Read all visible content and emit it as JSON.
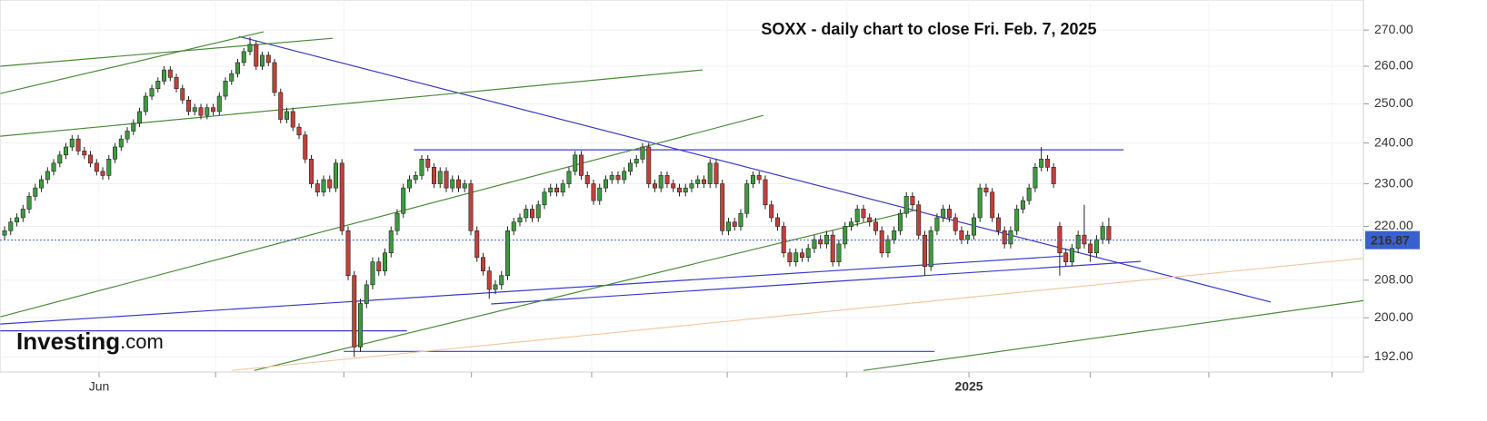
{
  "chart_data": {
    "type": "candlestick",
    "title": "SOXX - daily chart to close Fri. Feb. 7, 2025",
    "logo": {
      "main": "Investing",
      "suffix": ".com"
    },
    "log_scale": true,
    "grid": true,
    "up_color": "#3e9a3e",
    "down_color": "#c2403a",
    "xlim": [
      -0.75,
      221.5
    ],
    "ylim": [
      189,
      278.6
    ],
    "yticks": [
      {
        "value": 192,
        "label": "192.00"
      },
      {
        "value": 200,
        "label": "200.00"
      },
      {
        "value": 208,
        "label": "208.00"
      },
      {
        "value": 220,
        "label": "220.00"
      },
      {
        "value": 230,
        "label": "230.00"
      },
      {
        "value": 240,
        "label": "240.00"
      },
      {
        "value": 250,
        "label": "250.00"
      },
      {
        "value": 260,
        "label": "260.00"
      },
      {
        "value": 270,
        "label": "270.00"
      }
    ],
    "xticks": [
      15.4,
      34.4,
      55.3,
      76.1,
      95.7,
      117.8,
      137.3,
      157.2,
      177.0,
      196.3,
      216.4
    ],
    "xtick_labels": [
      {
        "value": 15.4,
        "label": "Jun"
      },
      {
        "value": 157.2,
        "label": "2025"
      }
    ],
    "last_price": {
      "value": 216.87,
      "label": "216.87",
      "color": "#3a5fd0"
    },
    "open": [
      218,
      219,
      221,
      222,
      224,
      227,
      229,
      231,
      233,
      235,
      237,
      239,
      241,
      238,
      237,
      235,
      233,
      232,
      236,
      239,
      241,
      243,
      245,
      248,
      252,
      254,
      256,
      259,
      257,
      254,
      251,
      248,
      249,
      247,
      249,
      248,
      252,
      256,
      258,
      261,
      264,
      266,
      260,
      263,
      261,
      253,
      246,
      248,
      244,
      242,
      236,
      230,
      228,
      231,
      229,
      235,
      219,
      209,
      194,
      203,
      207,
      212,
      210,
      214,
      219,
      223,
      229,
      231,
      232,
      236,
      234,
      230,
      233,
      229,
      231,
      229,
      230,
      219,
      213,
      210,
      206,
      207,
      209,
      219,
      221,
      222,
      224,
      222,
      225,
      228,
      229,
      228,
      230,
      233,
      237,
      232,
      230,
      226,
      229,
      231,
      232,
      231,
      233,
      235,
      236,
      239,
      230,
      229,
      232,
      230,
      229,
      228,
      229,
      230,
      231,
      230,
      235,
      230,
      219,
      221,
      220,
      223,
      230,
      232,
      231,
      225,
      222,
      220,
      214,
      212,
      214,
      213,
      215,
      217,
      216,
      218,
      212,
      216,
      220,
      221,
      224,
      222,
      221,
      219,
      214,
      217,
      219,
      223,
      227,
      225,
      218,
      211,
      219,
      222,
      224,
      222,
      219,
      217,
      218,
      222,
      229,
      228,
      222,
      219,
      216,
      219,
      224,
      226,
      229,
      234,
      236,
      234,
      220,
      214,
      212,
      215,
      218,
      216,
      214,
      217,
      220
    ],
    "high": [
      220,
      222,
      223,
      225,
      228,
      230,
      232,
      234,
      236,
      238,
      240,
      242,
      242,
      239,
      238,
      236,
      234,
      237,
      240,
      242,
      244,
      246,
      249,
      253,
      255,
      257,
      260,
      260,
      258,
      255,
      252,
      250,
      250,
      250,
      250,
      253,
      257,
      259,
      262,
      265,
      268,
      267,
      264,
      264,
      262,
      254,
      249,
      249,
      245,
      243,
      237,
      231,
      232,
      232,
      236,
      236,
      220,
      210,
      204,
      208,
      213,
      213,
      215,
      220,
      224,
      230,
      232,
      233,
      237,
      237,
      235,
      234,
      234,
      232,
      232,
      231,
      231,
      220,
      214,
      211,
      208,
      210,
      220,
      222,
      223,
      225,
      225,
      226,
      229,
      230,
      230,
      231,
      234,
      238,
      238,
      233,
      231,
      230,
      232,
      233,
      233,
      234,
      236,
      237,
      240,
      240,
      231,
      233,
      233,
      231,
      230,
      230,
      231,
      232,
      232,
      236,
      236,
      231,
      222,
      222,
      224,
      231,
      233,
      233,
      232,
      226,
      223,
      221,
      215,
      215,
      215,
      216,
      218,
      218,
      219,
      219,
      217,
      221,
      222,
      225,
      225,
      223,
      222,
      220,
      218,
      220,
      224,
      228,
      228,
      226,
      219,
      220,
      223,
      225,
      225,
      223,
      220,
      219,
      223,
      230,
      230,
      229,
      223,
      220,
      220,
      225,
      227,
      230,
      235,
      239,
      237,
      235,
      221,
      215,
      216,
      219,
      225,
      217,
      218,
      221,
      222
    ],
    "low": [
      217,
      218,
      220,
      221,
      223,
      226,
      228,
      230,
      232,
      234,
      236,
      238,
      237,
      236,
      234,
      232,
      231,
      231,
      235,
      238,
      240,
      242,
      244,
      247,
      251,
      253,
      255,
      256,
      253,
      250,
      247,
      247,
      246,
      246,
      247,
      247,
      251,
      255,
      257,
      260,
      263,
      259,
      259,
      260,
      252,
      245,
      245,
      243,
      241,
      235,
      229,
      227,
      227,
      228,
      228,
      218,
      208,
      192,
      193,
      202,
      206,
      209,
      209,
      213,
      218,
      222,
      228,
      230,
      231,
      233,
      229,
      229,
      228,
      228,
      228,
      228,
      218,
      212,
      209,
      204,
      205,
      206,
      208,
      218,
      220,
      221,
      221,
      221,
      224,
      227,
      227,
      227,
      229,
      232,
      231,
      229,
      225,
      225,
      228,
      230,
      230,
      230,
      232,
      234,
      235,
      229,
      228,
      228,
      229,
      228,
      227,
      227,
      228,
      229,
      229,
      229,
      229,
      218,
      218,
      219,
      219,
      222,
      229,
      230,
      224,
      221,
      219,
      213,
      211,
      211,
      212,
      212,
      214,
      215,
      215,
      211,
      211,
      215,
      219,
      220,
      221,
      220,
      218,
      213,
      213,
      216,
      218,
      222,
      224,
      217,
      209,
      210,
      218,
      221,
      221,
      218,
      216,
      216,
      217,
      221,
      227,
      221,
      218,
      215,
      215,
      218,
      223,
      225,
      228,
      233,
      233,
      229,
      209,
      211,
      211,
      214,
      215,
      212,
      213,
      216,
      216
    ],
    "close": [
      219,
      221,
      222,
      224,
      227,
      229,
      231,
      233,
      235,
      237,
      239,
      241,
      238,
      237,
      235,
      233,
      232,
      236,
      239,
      241,
      243,
      245,
      248,
      252,
      254,
      256,
      259,
      257,
      254,
      251,
      248,
      249,
      247,
      249,
      248,
      252,
      256,
      258,
      261,
      264,
      266,
      260,
      263,
      261,
      253,
      246,
      248,
      244,
      242,
      236,
      230,
      228,
      231,
      229,
      235,
      219,
      209,
      194,
      203,
      207,
      212,
      210,
      214,
      219,
      223,
      229,
      231,
      232,
      236,
      234,
      230,
      233,
      229,
      231,
      229,
      230,
      219,
      213,
      210,
      206,
      207,
      209,
      219,
      221,
      222,
      224,
      222,
      225,
      228,
      229,
      228,
      230,
      233,
      237,
      232,
      230,
      226,
      229,
      231,
      232,
      231,
      233,
      235,
      236,
      239,
      230,
      229,
      232,
      230,
      229,
      228,
      229,
      230,
      231,
      230,
      235,
      230,
      219,
      221,
      220,
      223,
      230,
      232,
      231,
      225,
      222,
      220,
      214,
      212,
      214,
      213,
      215,
      217,
      216,
      218,
      212,
      216,
      220,
      221,
      224,
      222,
      221,
      219,
      214,
      217,
      219,
      223,
      227,
      225,
      218,
      211,
      219,
      222,
      224,
      222,
      219,
      217,
      218,
      222,
      229,
      228,
      222,
      219,
      216,
      219,
      224,
      226,
      229,
      234,
      236,
      234,
      230,
      214,
      212,
      215,
      218,
      216,
      214,
      217,
      220,
      216.87
    ],
    "trendlines": [
      {
        "color": "#3b3bc8",
        "x": [
          38.2,
          206.4
        ],
        "y": [
          268.2,
          203.3
        ]
      },
      {
        "color": "#3b3bc8",
        "x": [
          66.7,
          182.4
        ],
        "y": [
          238.3,
          238.3
        ]
      },
      {
        "color": "#3b3bc8",
        "x": [
          79.3,
          185.2
        ],
        "y": [
          202.9,
          212.1
        ]
      },
      {
        "color": "#3b3bc8",
        "x": [
          -0.7,
          172.6
        ],
        "y": [
          198.7,
          213.3
        ]
      },
      {
        "color": "#3b3bc8",
        "x": [
          -0.7,
          65.6
        ],
        "y": [
          197.3,
          197.3
        ]
      },
      {
        "color": "#3b3bc8",
        "x": [
          55.3,
          151.6
        ],
        "y": [
          193.1,
          193.1
        ]
      },
      {
        "color": "#4a8a3a",
        "x": [
          -0.7,
          53.5
        ],
        "y": [
          260,
          267.7
        ]
      },
      {
        "color": "#4a8a3a",
        "x": [
          -0.7,
          42.2
        ],
        "y": [
          252.7,
          269.5
        ]
      },
      {
        "color": "#4a8a3a",
        "x": [
          -0.7,
          113.8
        ],
        "y": [
          241.7,
          259
        ]
      },
      {
        "color": "#4a8a3a",
        "x": [
          -0.7,
          123.7
        ],
        "y": [
          200.2,
          247
        ]
      },
      {
        "color": "#4a8a3a",
        "x": [
          40.7,
          148.9
        ],
        "y": [
          189.3,
          223.9
        ]
      },
      {
        "color": "#4a8a3a",
        "x": [
          140,
          221.5
        ],
        "y": [
          189.3,
          203.6
        ]
      },
      {
        "color": "#f2c9a2",
        "x": [
          37,
          221.5
        ],
        "y": [
          189.3,
          212.8
        ]
      }
    ]
  }
}
